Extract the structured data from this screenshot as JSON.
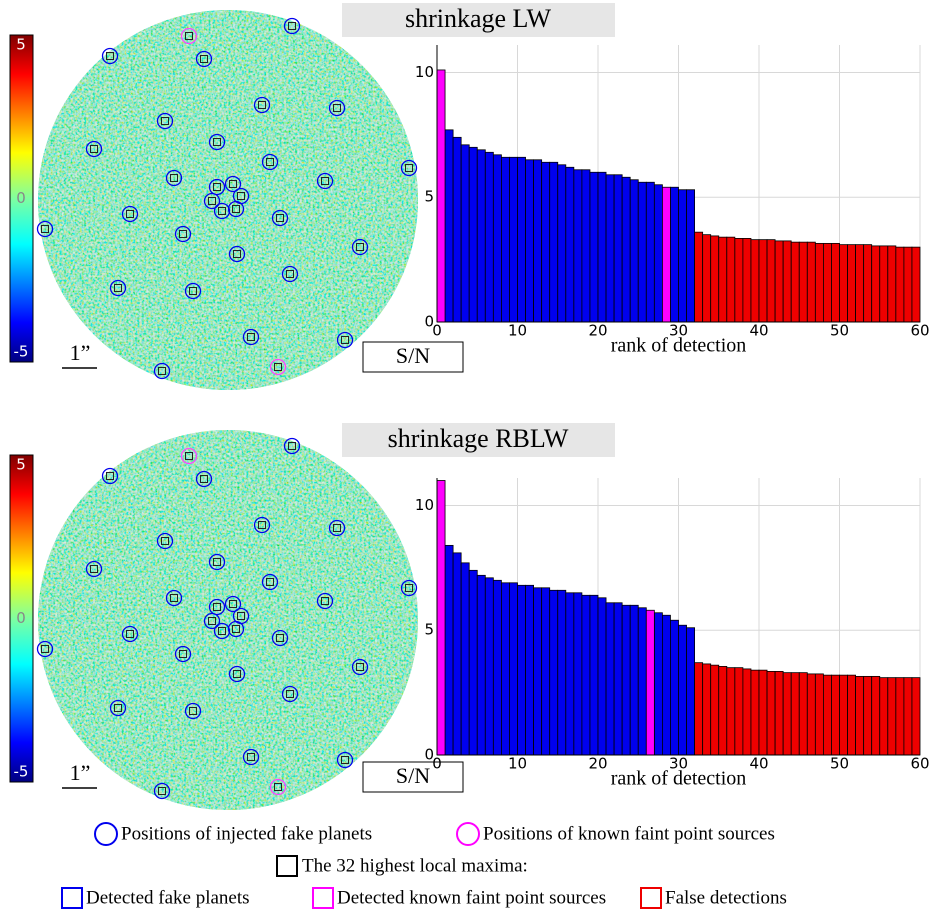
{
  "chart_data": [
    {
      "type": "bar",
      "title": "shrinkage LW",
      "xlabel": "rank of detection",
      "colorbar_label": "S/N",
      "scale_label": "1”",
      "clim": [
        -5,
        5
      ],
      "cticks": [
        5,
        0,
        -5
      ],
      "xlim": [
        0,
        60
      ],
      "ylim": [
        0,
        11.1
      ],
      "xticks": [
        0,
        10,
        20,
        30,
        40,
        50,
        60
      ],
      "yticks": [
        0,
        5,
        10
      ],
      "grid": true,
      "series": [
        {
          "name": "Detected fake planets",
          "color": "#0000ee",
          "x": [
            2,
            3,
            4,
            5,
            6,
            7,
            8,
            9,
            10,
            11,
            12,
            13,
            14,
            15,
            16,
            17,
            18,
            19,
            20,
            21,
            22,
            23,
            24,
            25,
            26,
            27,
            28,
            30,
            31,
            32
          ],
          "values": [
            7.7,
            7.4,
            7.1,
            7.0,
            6.9,
            6.8,
            6.7,
            6.6,
            6.6,
            6.6,
            6.5,
            6.5,
            6.4,
            6.4,
            6.3,
            6.2,
            6.1,
            6.1,
            6.0,
            6.0,
            5.9,
            5.9,
            5.8,
            5.7,
            5.6,
            5.6,
            5.5,
            5.4,
            5.3,
            5.3
          ]
        },
        {
          "name": "Detected known faint point sources",
          "color": "#ff00ff",
          "x": [
            1,
            29
          ],
          "values": [
            10.1,
            5.4
          ]
        },
        {
          "name": "False detections",
          "color": "#ee0000",
          "x": [
            33,
            34,
            35,
            36,
            37,
            38,
            39,
            40,
            41,
            42,
            43,
            44,
            45,
            46,
            47,
            48,
            49,
            50,
            51,
            52,
            53,
            54,
            55,
            56,
            57,
            58,
            59,
            60
          ],
          "values": [
            3.6,
            3.5,
            3.45,
            3.4,
            3.4,
            3.35,
            3.35,
            3.3,
            3.3,
            3.3,
            3.25,
            3.25,
            3.2,
            3.2,
            3.2,
            3.15,
            3.15,
            3.15,
            3.1,
            3.1,
            3.1,
            3.1,
            3.05,
            3.05,
            3.05,
            3.0,
            3.0,
            3.0
          ]
        }
      ]
    },
    {
      "type": "bar",
      "title": "shrinkage RBLW",
      "xlabel": "rank of detection",
      "colorbar_label": "S/N",
      "scale_label": "1”",
      "clim": [
        -5,
        5
      ],
      "cticks": [
        5,
        0,
        -5
      ],
      "xlim": [
        0,
        60
      ],
      "ylim": [
        0,
        11.1
      ],
      "xticks": [
        0,
        10,
        20,
        30,
        40,
        50,
        60
      ],
      "yticks": [
        0,
        5,
        10
      ],
      "grid": true,
      "series": [
        {
          "name": "Detected fake planets",
          "color": "#0000ee",
          "x": [
            2,
            3,
            4,
            5,
            6,
            7,
            8,
            9,
            10,
            11,
            12,
            13,
            14,
            15,
            16,
            17,
            18,
            19,
            20,
            21,
            22,
            23,
            24,
            25,
            26,
            28,
            29,
            30,
            31,
            32
          ],
          "values": [
            8.4,
            8.1,
            7.7,
            7.4,
            7.2,
            7.1,
            7.0,
            6.9,
            6.9,
            6.8,
            6.8,
            6.7,
            6.7,
            6.6,
            6.6,
            6.5,
            6.5,
            6.4,
            6.4,
            6.3,
            6.1,
            6.1,
            6.0,
            6.0,
            5.9,
            5.7,
            5.6,
            5.4,
            5.2,
            5.1
          ]
        },
        {
          "name": "Detected known faint point sources",
          "color": "#ff00ff",
          "x": [
            1,
            27
          ],
          "values": [
            11.0,
            5.8
          ]
        },
        {
          "name": "False detections",
          "color": "#ee0000",
          "x": [
            33,
            34,
            35,
            36,
            37,
            38,
            39,
            40,
            41,
            42,
            43,
            44,
            45,
            46,
            47,
            48,
            49,
            50,
            51,
            52,
            53,
            54,
            55,
            56,
            57,
            58,
            59,
            60
          ],
          "values": [
            3.7,
            3.65,
            3.6,
            3.55,
            3.5,
            3.5,
            3.45,
            3.4,
            3.4,
            3.35,
            3.35,
            3.3,
            3.3,
            3.3,
            3.25,
            3.25,
            3.2,
            3.2,
            3.2,
            3.2,
            3.15,
            3.15,
            3.15,
            3.1,
            3.1,
            3.1,
            3.1,
            3.1
          ]
        }
      ]
    }
  ],
  "legend": {
    "injected": "Positions of injected fake planets",
    "known": "Positions of known faint point sources",
    "maxima": "The 32 highest local maxima:"
  }
}
